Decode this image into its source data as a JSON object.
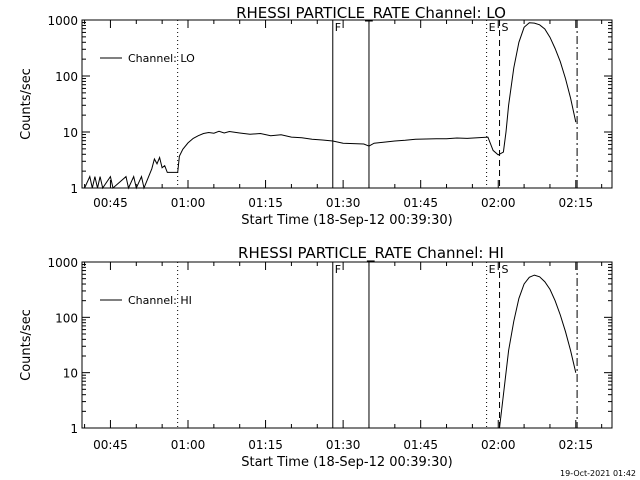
{
  "footer": {
    "timestamp": "19-Oct-2021 01:42"
  },
  "style": {
    "background": "#ffffff",
    "foreground": "#000000"
  },
  "chart_data": [
    {
      "type": "line",
      "title": "RHESSI PARTICLE_RATE Channel: LO",
      "xlabel": "Start Time (18-Sep-12 00:39:30)",
      "ylabel": "Counts/sec",
      "yscale": "log",
      "ylim": [
        1,
        1000
      ],
      "xlim": [
        "00:39:30",
        "02:22:00"
      ],
      "x_ticks": [
        "00:45",
        "01:00",
        "01:15",
        "01:30",
        "01:45",
        "02:00",
        "02:15"
      ],
      "y_ticks": [
        "1",
        "10",
        "100",
        "1000"
      ],
      "grid": false,
      "legend": {
        "position": "top-left",
        "entries": [
          "Channel: LO"
        ]
      },
      "series": [
        {
          "name": "Channel: LO",
          "points": [
            [
              "00:40:00",
              1
            ],
            [
              "00:41:00",
              1.6
            ],
            [
              "00:41:30",
              1
            ],
            [
              "00:42:00",
              1.6
            ],
            [
              "00:42:30",
              1
            ],
            [
              "00:43:00",
              1.6
            ],
            [
              "00:43:30",
              1
            ],
            [
              "00:45:00",
              1.6
            ],
            [
              "00:45:30",
              1
            ],
            [
              "00:48:00",
              1.6
            ],
            [
              "00:48:30",
              1
            ],
            [
              "00:49:30",
              1.6
            ],
            [
              "00:50:00",
              1
            ],
            [
              "00:51:00",
              1.6
            ],
            [
              "00:51:30",
              1
            ],
            [
              "00:53:00",
              2.2
            ],
            [
              "00:53:30",
              3.3
            ],
            [
              "00:54:00",
              2.7
            ],
            [
              "00:54:30",
              3.5
            ],
            [
              "00:55:00",
              2.3
            ],
            [
              "00:55:30",
              2.5
            ],
            [
              "00:56:00",
              1.9
            ],
            [
              "00:58:00",
              1.9
            ],
            [
              "00:58:20",
              3.7
            ],
            [
              "00:59:00",
              4.9
            ],
            [
              "01:00:00",
              6.4
            ],
            [
              "01:01:00",
              7.7
            ],
            [
              "01:02:00",
              8.6
            ],
            [
              "01:03:00",
              9.4
            ],
            [
              "01:04:00",
              9.8
            ],
            [
              "01:05:00",
              9.5
            ],
            [
              "01:06:00",
              10.3
            ],
            [
              "01:07:00",
              9.6
            ],
            [
              "01:08:00",
              10.2
            ],
            [
              "01:10:00",
              9.6
            ],
            [
              "01:12:00",
              9.1
            ],
            [
              "01:14:00",
              9.4
            ],
            [
              "01:16:00",
              8.6
            ],
            [
              "01:18:00",
              8.9
            ],
            [
              "01:20:00",
              8.1
            ],
            [
              "01:22:00",
              7.9
            ],
            [
              "01:24:00",
              7.4
            ],
            [
              "01:26:00",
              7.2
            ],
            [
              "01:28:00",
              6.9
            ],
            [
              "01:30:00",
              6.3
            ],
            [
              "01:32:00",
              6.2
            ],
            [
              "01:34:00",
              6.1
            ],
            [
              "01:35:00",
              5.6
            ],
            [
              "01:36:00",
              6.3
            ],
            [
              "01:38:00",
              6.6
            ],
            [
              "01:40:00",
              6.9
            ],
            [
              "01:42:00",
              7.1
            ],
            [
              "01:44:00",
              7.4
            ],
            [
              "01:46:00",
              7.5
            ],
            [
              "01:48:00",
              7.6
            ],
            [
              "01:50:00",
              7.6
            ],
            [
              "01:52:00",
              7.8
            ],
            [
              "01:54:00",
              7.7
            ],
            [
              "01:56:00",
              7.9
            ],
            [
              "01:58:00",
              8.1
            ],
            [
              "01:59:00",
              4.7
            ],
            [
              "02:00:00",
              3.9
            ],
            [
              "02:01:00",
              4.4
            ],
            [
              "02:01:30",
              10
            ],
            [
              "02:02:00",
              30
            ],
            [
              "02:03:00",
              140
            ],
            [
              "02:04:00",
              400
            ],
            [
              "02:05:00",
              740
            ],
            [
              "02:06:00",
              890
            ],
            [
              "02:07:00",
              880
            ],
            [
              "02:08:00",
              820
            ],
            [
              "02:09:00",
              690
            ],
            [
              "02:10:00",
              490
            ],
            [
              "02:11:00",
              310
            ],
            [
              "02:12:00",
              180
            ],
            [
              "02:13:00",
              90
            ],
            [
              "02:14:00",
              40
            ],
            [
              "02:15:00",
              15
            ]
          ]
        }
      ],
      "markers": [
        {
          "time": "00:58:00",
          "style": "dotted",
          "label": ""
        },
        {
          "time": "01:28:00",
          "style": "solid",
          "label": "F"
        },
        {
          "time": "01:35:00",
          "style": "solid",
          "label": ""
        },
        {
          "time": "01:57:45",
          "style": "dotted",
          "label": "E"
        },
        {
          "time": "02:00:15",
          "style": "dashed",
          "label": "S"
        },
        {
          "time": "02:15:15",
          "style": "dashdot",
          "label": ""
        }
      ]
    },
    {
      "type": "line",
      "title": "RHESSI PARTICLE_RATE Channel: HI",
      "xlabel": "Start Time (18-Sep-12 00:39:30)",
      "ylabel": "Counts/sec",
      "yscale": "log",
      "ylim": [
        1,
        1000
      ],
      "xlim": [
        "00:39:30",
        "02:22:00"
      ],
      "x_ticks": [
        "00:45",
        "01:00",
        "01:15",
        "01:30",
        "01:45",
        "02:00",
        "02:15"
      ],
      "y_ticks": [
        "1",
        "10",
        "100",
        "1000"
      ],
      "grid": false,
      "legend": {
        "position": "top-left",
        "entries": [
          "Channel: HI"
        ]
      },
      "series": [
        {
          "name": "Channel: HI",
          "points": [
            [
              "02:00:15",
              1
            ],
            [
              "02:00:45",
              2.5
            ],
            [
              "02:01:30",
              10
            ],
            [
              "02:02:00",
              25
            ],
            [
              "02:03:00",
              85
            ],
            [
              "02:04:00",
              220
            ],
            [
              "02:05:00",
              400
            ],
            [
              "02:06:00",
              530
            ],
            [
              "02:07:00",
              580
            ],
            [
              "02:08:00",
              540
            ],
            [
              "02:09:00",
              440
            ],
            [
              "02:10:00",
              320
            ],
            [
              "02:11:00",
              200
            ],
            [
              "02:12:00",
              110
            ],
            [
              "02:13:00",
              55
            ],
            [
              "02:14:00",
              25
            ],
            [
              "02:15:00",
              10
            ]
          ]
        }
      ],
      "markers": [
        {
          "time": "00:58:00",
          "style": "dotted",
          "label": ""
        },
        {
          "time": "01:28:00",
          "style": "solid",
          "label": "F"
        },
        {
          "time": "01:35:00",
          "style": "solid",
          "label": ""
        },
        {
          "time": "01:57:45",
          "style": "dotted",
          "label": "E"
        },
        {
          "time": "02:00:15",
          "style": "dashed",
          "label": "S"
        },
        {
          "time": "02:15:15",
          "style": "dashdot",
          "label": ""
        }
      ]
    }
  ]
}
